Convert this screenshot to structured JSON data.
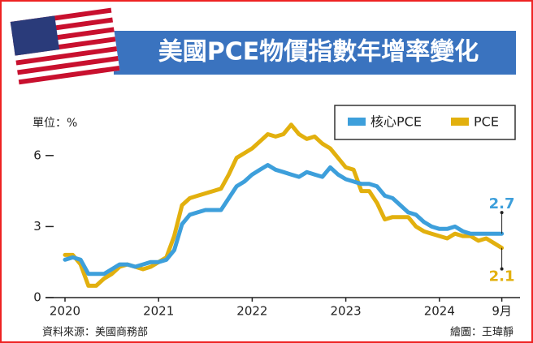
{
  "chart_data": {
    "type": "line",
    "title": "美國PCE物價指數年增率變化",
    "unit_label": "單位：%",
    "source": "資料來源：美國商務部",
    "credit": "繪圖：王瑋靜",
    "categories": [
      "2020",
      null,
      null,
      null,
      null,
      null,
      null,
      null,
      null,
      null,
      null,
      null,
      "2021",
      null,
      null,
      null,
      null,
      null,
      null,
      null,
      null,
      null,
      null,
      null,
      "2022",
      null,
      null,
      null,
      null,
      null,
      null,
      null,
      null,
      null,
      null,
      null,
      "2023",
      null,
      null,
      null,
      null,
      null,
      null,
      null,
      null,
      null,
      null,
      null,
      "2024",
      null,
      null,
      null,
      null,
      null,
      null,
      null,
      "9月"
    ],
    "series": [
      {
        "name": "核心PCE",
        "color": "#3d9fdb",
        "values": [
          1.6,
          1.7,
          1.6,
          1.0,
          1.0,
          1.0,
          1.2,
          1.4,
          1.4,
          1.3,
          1.4,
          1.5,
          1.5,
          1.6,
          2.0,
          3.1,
          3.5,
          3.6,
          3.7,
          3.7,
          3.7,
          4.2,
          4.7,
          4.9,
          5.2,
          5.4,
          5.6,
          5.4,
          5.3,
          5.2,
          5.1,
          5.3,
          5.2,
          5.1,
          5.5,
          5.2,
          5.0,
          4.9,
          4.8,
          4.8,
          4.7,
          4.3,
          4.2,
          3.9,
          3.6,
          3.5,
          3.2,
          3.0,
          2.9,
          2.9,
          3.0,
          2.8,
          2.7,
          2.7,
          2.7,
          2.7,
          2.7
        ]
      },
      {
        "name": "PCE",
        "color": "#e2b00e",
        "values": [
          1.8,
          1.8,
          1.4,
          0.5,
          0.5,
          0.8,
          1.0,
          1.3,
          1.4,
          1.3,
          1.2,
          1.3,
          1.5,
          1.7,
          2.6,
          3.9,
          4.2,
          4.3,
          4.4,
          4.5,
          4.6,
          5.2,
          5.9,
          6.1,
          6.3,
          6.6,
          6.9,
          6.8,
          6.9,
          7.3,
          6.9,
          6.7,
          6.8,
          6.5,
          6.3,
          5.9,
          5.5,
          5.4,
          4.5,
          4.5,
          4.0,
          3.3,
          3.4,
          3.4,
          3.4,
          3.0,
          2.8,
          2.7,
          2.6,
          2.5,
          2.7,
          2.6,
          2.6,
          2.4,
          2.5,
          2.3,
          2.1
        ]
      }
    ],
    "ylim": [
      0,
      7.5
    ],
    "yticks": [
      0,
      3,
      6
    ],
    "legend": "top-right"
  }
}
